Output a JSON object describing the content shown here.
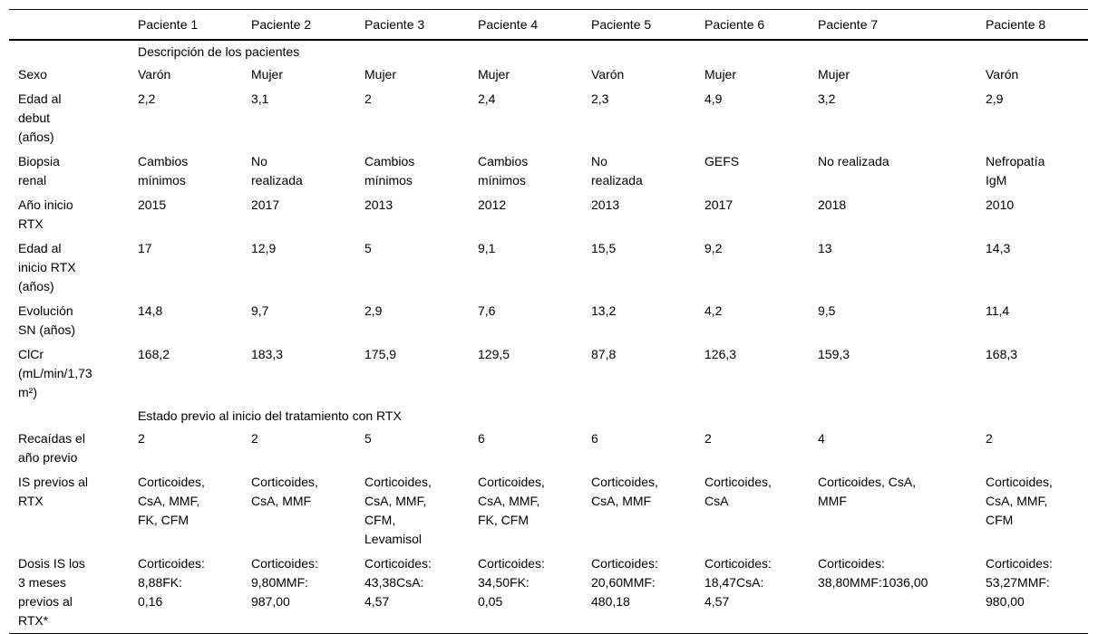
{
  "page": {
    "background_color": "#ffffff",
    "text_color": "#000000",
    "rule_color": "#000000"
  },
  "table": {
    "columns": [
      "",
      "Paciente 1",
      "Paciente 2",
      "Paciente 3",
      "Paciente 4",
      "Paciente 5",
      "Paciente 6",
      "Paciente 7",
      "Paciente 8"
    ],
    "sections": [
      {
        "header": "Descripción de los pacientes",
        "rows": [
          {
            "label": "Sexo",
            "values": [
              "Varón",
              "Mujer",
              "Mujer",
              "Mujer",
              "Varón",
              "Mujer",
              "Mujer",
              "Varón"
            ]
          },
          {
            "label": "Edad al\ndebut\n(años)",
            "values": [
              "2,2",
              "3,1",
              "2",
              "2,4",
              "2,3",
              "4,9",
              "3,2",
              "2,9"
            ]
          },
          {
            "label": "Biopsia\nrenal",
            "values": [
              "Cambios\nmínimos",
              "No\nrealizada",
              "Cambios\nmínimos",
              "Cambios\nmínimos",
              "No\nrealizada",
              "GEFS",
              "No realizada",
              "Nefropatía\nIgM"
            ]
          },
          {
            "label": "Año inicio\nRTX",
            "values": [
              "2015",
              "2017",
              "2013",
              "2012",
              "2013",
              "2017",
              "2018",
              "2010"
            ]
          },
          {
            "label": "Edad al\ninicio RTX\n(años)",
            "values": [
              "17",
              "12,9",
              "5",
              "9,1",
              "15,5",
              "9,2",
              "13",
              "14,3"
            ]
          },
          {
            "label": "Evolución\nSN (años)",
            "values": [
              "14,8",
              "9,7",
              "2,9",
              "7,6",
              "13,2",
              "4,2",
              "9,5",
              "11,4"
            ]
          },
          {
            "label": "ClCr\n(mL/min/1,73\nm²)",
            "values": [
              "168,2",
              "183,3",
              "175,9",
              "129,5",
              "87,8",
              "126,3",
              "159,3",
              "168,3"
            ]
          }
        ]
      },
      {
        "header": "Estado previo al inicio del tratamiento con RTX",
        "rows": [
          {
            "label": "Recaídas el\naño previo",
            "values": [
              "2",
              "2",
              "5",
              "6",
              "6",
              "2",
              "4",
              "2"
            ]
          },
          {
            "label": "IS previos al\nRTX",
            "values": [
              "Corticoides,\nCsA, MMF,\nFK, CFM",
              "Corticoides,\nCsA, MMF",
              "Corticoides,\nCsA, MMF,\nCFM,\nLevamisol",
              "Corticoides,\nCsA, MMF,\nFK, CFM",
              "Corticoides,\nCsA, MMF",
              "Corticoides,\nCsA",
              "Corticoides, CsA,\nMMF",
              "Corticoides,\nCsA, MMF,\nCFM"
            ]
          },
          {
            "label": "Dosis IS los\n3 meses\nprevios al\nRTX*",
            "values": [
              "Corticoides:\n8,88FK:\n0,16",
              "Corticoides:\n9,80MMF:\n987,00",
              "Corticoides:\n43,38CsA:\n4,57",
              "Corticoides:\n34,50FK:\n0,05",
              "Corticoides:\n20,60MMF:\n480,18",
              "Corticoides:\n18,47CsA:\n4,57",
              "Corticoides:\n38,80MMF:1036,00",
              "Corticoides:\n53,27MMF:\n980,00"
            ]
          }
        ]
      }
    ]
  }
}
